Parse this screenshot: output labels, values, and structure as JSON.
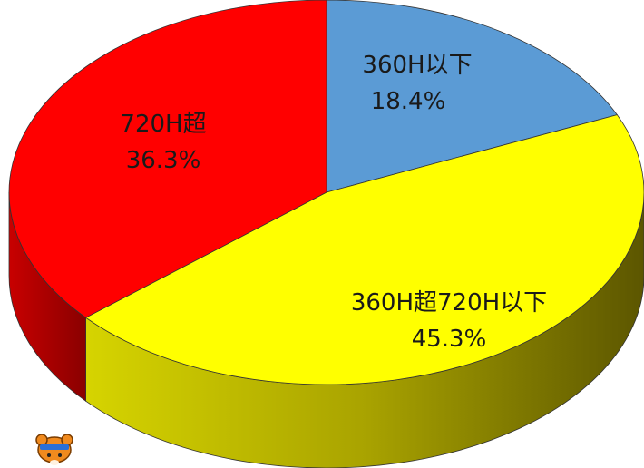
{
  "chart_data": {
    "type": "pie",
    "style": "3d",
    "title": "",
    "slices": [
      {
        "label": "360H以下",
        "value": 18.4,
        "display": "18.4%",
        "color": "#5B9BD5"
      },
      {
        "label": "360H超720H以下",
        "value": 45.3,
        "display": "45.3%",
        "color": "#FFFF00"
      },
      {
        "label": "720H超",
        "value": 36.3,
        "display": "36.3%",
        "color": "#FF0000"
      }
    ],
    "start_angle_deg": 90,
    "direction": "clockwise",
    "legend": "none"
  },
  "decoration": {
    "mascot_icon": "bear-mascot-icon"
  }
}
